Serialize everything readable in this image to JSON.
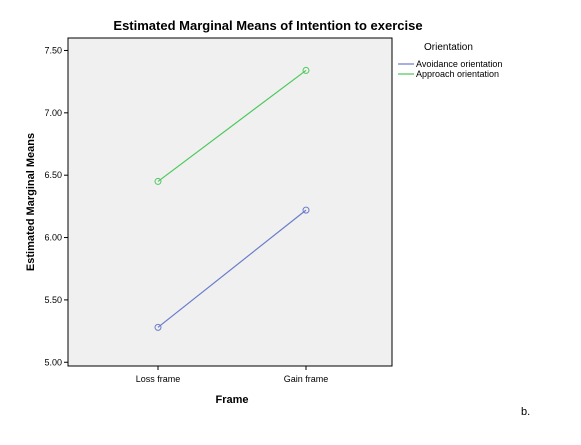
{
  "chart_data": {
    "type": "line",
    "title": "Estimated Marginal Means of Intention to exercise",
    "xlabel": "Frame",
    "ylabel": "Estimated Marginal Means",
    "categories": [
      "Loss frame",
      "Gain frame"
    ],
    "ylim": [
      4.97,
      7.6
    ],
    "yticks": [
      "5.00",
      "5.50",
      "6.00",
      "6.50",
      "7.00",
      "7.50"
    ],
    "grid": false,
    "legend": {
      "title": "Orientation",
      "placement": "right"
    },
    "series": [
      {
        "name": "Avoidance orientation",
        "values": [
          5.28,
          6.22
        ],
        "color": "#6a7ccc"
      },
      {
        "name": "Approach orientation",
        "values": [
          6.45,
          7.34
        ],
        "color": "#4cc85a"
      }
    ],
    "plot_background": "#f0f0f0"
  },
  "footer_label": "b."
}
